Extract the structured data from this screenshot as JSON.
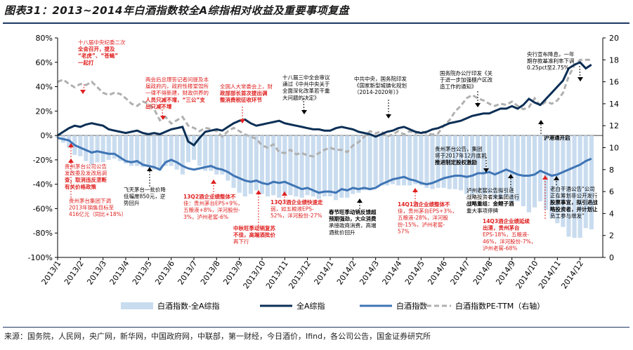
{
  "title": "图表31：2013~2014年白酒指数较全A综指相对收益及重要事项复盘",
  "source": "来源：国务院，人民网，央广网，新华网，中国政府网，中联部，第一财经，今日酒价，Ifind，各公司公告，国金证券研究所",
  "colors": {
    "bar": "#c9dcef",
    "all_a": "#0b2f55",
    "liquor": "#3f75b5",
    "pe": "#b0b0b0",
    "red": "#e02020"
  },
  "chart_data": {
    "type": "line",
    "x_tick_labels": [
      "2013/1",
      "2013/2",
      "2013/3",
      "2013/4",
      "2013/5",
      "2013/6",
      "2013/7",
      "2013/8",
      "2013/9",
      "2013/10",
      "2013/11",
      "2013/12",
      "2014/1",
      "2014/2",
      "2014/3",
      "2014/4",
      "2014/5",
      "2014/6",
      "2014/7",
      "2014/8",
      "2014/9",
      "2014/10",
      "2014/11",
      "2014/12"
    ],
    "y_left": {
      "min": -100,
      "max": 80,
      "step": 20,
      "unit": "%"
    },
    "y_right": {
      "min": 0,
      "max": 20,
      "step": 2
    },
    "legend": [
      {
        "key": "diff",
        "label": "白酒指数-全A综指",
        "style": "bar"
      },
      {
        "key": "all_a",
        "label": "全A综指",
        "style": "line"
      },
      {
        "key": "liquor",
        "label": "白酒指数",
        "style": "line"
      },
      {
        "key": "pe",
        "label": "白酒指数PE-TTM（右轴）",
        "style": "dashed"
      }
    ],
    "x_months": [
      0,
      0.25,
      0.5,
      0.75,
      1,
      1.25,
      1.5,
      1.75,
      2,
      2.25,
      2.5,
      2.75,
      3,
      3.25,
      3.5,
      3.75,
      4,
      4.25,
      4.5,
      4.75,
      5,
      5.25,
      5.5,
      5.75,
      6,
      6.25,
      6.5,
      6.75,
      7,
      7.25,
      7.5,
      7.75,
      8,
      8.25,
      8.5,
      8.75,
      9,
      9.25,
      9.5,
      9.75,
      10,
      10.25,
      10.5,
      10.75,
      11,
      11.25,
      11.5,
      11.75,
      12,
      12.25,
      12.5,
      12.75,
      13,
      13.25,
      13.5,
      13.75,
      14,
      14.25,
      14.5,
      14.75,
      15,
      15.25,
      15.5,
      15.75,
      16,
      16.25,
      16.5,
      16.75,
      17,
      17.25,
      17.5,
      17.75,
      18,
      18.25,
      18.5,
      18.75,
      19,
      19.25,
      19.5,
      19.75,
      20,
      20.25,
      20.5,
      20.75,
      21,
      21.25,
      21.5,
      21.75,
      22,
      22.25,
      22.5,
      22.75,
      23,
      23.25,
      23.5
    ],
    "series": [
      {
        "key": "all_a",
        "values": [
          0,
          3,
          6,
          8,
          7,
          9,
          10,
          9,
          8,
          5,
          4,
          3,
          2,
          3,
          4,
          2,
          1,
          2,
          1,
          3,
          5,
          6,
          7,
          -5,
          -8,
          -2,
          3,
          4,
          5,
          4,
          7,
          10,
          12,
          13,
          10,
          8,
          9,
          10,
          11,
          12,
          10,
          9,
          8,
          7,
          6,
          5,
          5,
          4,
          4,
          6,
          7,
          6,
          5,
          3,
          2,
          1,
          -1,
          1,
          3,
          4,
          6,
          7,
          5,
          3,
          2,
          3,
          5,
          6,
          8,
          10,
          11,
          12,
          14,
          16,
          17,
          18,
          18,
          20,
          22,
          22,
          24,
          22,
          25,
          30,
          27,
          25,
          30,
          35,
          40,
          45,
          55,
          58,
          60,
          55,
          58
        ]
      },
      {
        "key": "liquor",
        "values": [
          -2,
          -3,
          -4,
          -8,
          -10,
          -12,
          -14,
          -13,
          -14,
          -15,
          -15,
          -18,
          -21,
          -22,
          -21,
          -24,
          -25,
          -26,
          -28,
          -22,
          -20,
          -22,
          -25,
          -27,
          -28,
          -27,
          -26,
          -25,
          -27,
          -28,
          -30,
          -33,
          -35,
          -37,
          -38,
          -37,
          -39,
          -40,
          -38,
          -39,
          -38,
          -40,
          -42,
          -44,
          -43,
          -45,
          -47,
          -46,
          -46,
          -47,
          -44,
          -45,
          -43,
          -44,
          -43,
          -44,
          -43,
          -40,
          -38,
          -36,
          -35,
          -34,
          -36,
          -37,
          -39,
          -40,
          -39,
          -37,
          -35,
          -34,
          -33,
          -33,
          -34,
          -33,
          -31,
          -31,
          -30,
          -32,
          -30,
          -28,
          -30,
          -32,
          -33,
          -33,
          -32,
          -29,
          -31,
          -33,
          -32,
          -30,
          -28,
          -26,
          -24,
          -21,
          -19
        ]
      },
      {
        "key": "pe",
        "values": [
          16,
          16.2,
          15.8,
          15.5,
          15.8,
          15.7,
          16,
          15.5,
          15,
          14.8,
          15,
          14.9,
          14.5,
          14,
          13.8,
          14.2,
          14,
          13.5,
          12.5,
          12.8,
          12.2,
          12.5,
          12.8,
          12,
          11.8,
          11.5,
          11.8,
          11.7,
          11.5,
          11,
          11.5,
          11.8,
          11.5,
          11.2,
          11,
          10.8,
          10.2,
          10,
          10.3,
          9.6,
          9.5,
          9.8,
          9.4,
          9.5,
          9.3,
          9.2,
          9.5,
          9.8,
          10,
          9.8,
          9.8,
          9.6,
          10.2,
          10.5,
          11,
          11.5,
          11.3,
          11.5,
          11,
          11.2,
          11.5,
          11.2,
          11.5,
          11.3,
          11.5,
          11.3,
          11.2,
          11.3,
          12,
          12.5,
          13.3,
          13.8,
          14.5,
          14.8,
          14.5,
          14.3,
          14,
          13.8,
          14,
          13.9,
          14.2,
          13.8,
          13.5,
          13.7,
          14.5,
          13.8,
          14.2,
          14,
          14.3,
          15,
          16.5,
          17.5,
          18,
          18,
          18
        ]
      }
    ]
  },
  "annotations": [
    {
      "lines": [
        "十八届中央纪委二次",
        "全会召开，提及",
        "“老虎”、“苍蝇”",
        "一起打"
      ],
      "bold_lines": [
        1,
        2,
        3
      ],
      "color": "red"
    },
    {
      "lines": [
        "两会后总理答记者问提及本",
        "届政府内，政府性楼堂馆所",
        "一律不得新建，财政供养的",
        "人员只减不增，“三公”支",
        "出只减不增"
      ],
      "bold_lines": [
        3,
        4
      ],
      "color": "red"
    },
    {
      "lines": [
        "全国人大常委会上，财",
        "政部部长首次提出调",
        "整消费税征收环节"
      ],
      "bold_lines": [
        1,
        2
      ],
      "color": "red"
    },
    {
      "lines": [
        "十八届三中全会审议",
        "通过《中共中央关于",
        "全面深化改革若干重",
        "大问题的决定》"
      ],
      "bold_lines": [],
      "color": "black"
    },
    {
      "lines": [
        "中共中央，国务院印发",
        "《国家新型城镇化规划",
        "（2014-2020年）》"
      ],
      "bold_lines": [],
      "color": "black"
    },
    {
      "lines": [
        "国务院办公厅印发《关",
        "于进一步加强棚户区改",
        "造工作的通知》"
      ],
      "bold_lines": [],
      "color": "black"
    },
    {
      "lines": [
        "央行宣布降息，一年",
        "期存款基准利率下调",
        "0.25pct至2.75%"
      ],
      "bold_lines": [],
      "color": "black"
    },
    {
      "lines": [
        "沪港通开启"
      ],
      "bold_lines": [
        0
      ],
      "color": "black"
    },
    {
      "lines": [
        "贵州茅台公司公告",
        "发改委及发改局调",
        "查，取消违反垄断",
        "有关价格政策"
      ],
      "bold_lines": [
        2,
        3
      ],
      "color": "red"
    },
    {
      "lines": [
        "贵州茅台集团下调",
        "2013年销售目标至",
        "416亿元（同比+18%）"
      ],
      "bold_lines": [],
      "color": "red"
    },
    {
      "lines": [
        "飞天茅台一批价降",
        "低幅度850元，逆",
        "势回升"
      ],
      "bold_lines": [],
      "color": "black"
    },
    {
      "lines": [
        "13Q2酒企业绩整体不",
        "佳：贵州茅台EPS+9%，",
        "五粮液+8%，洋河股份-",
        "3%，泸州老窖-6%"
      ],
      "bold_lines": [
        0
      ],
      "color": "red"
    },
    {
      "lines": [
        "中秋旺季动销复苏",
        "不佳，高端酒批价",
        "再下行"
      ],
      "bold_lines": [
        0,
        1
      ],
      "color": "red"
    },
    {
      "lines": [
        "13Q3酒企业绩快速走",
        "弱，如五粮液EPS-",
        "52%，洋河股份-27%"
      ],
      "bold_lines": [
        0
      ],
      "color": "red"
    },
    {
      "lines": [
        "春节旺季动销反馈超",
        "预期强劲，大众消费",
        "承接政商消费，高端",
        "酒批价回升"
      ],
      "bold_lines": [
        0,
        1
      ],
      "color": "black"
    },
    {
      "lines": [
        "14Q1酒企业绩整体不",
        "佳，贵州茅台EPS+3%，",
        "五粮液-28%，洋河股",
        "份-15%，泸州老窖-",
        "57%"
      ],
      "bold_lines": [
        0
      ],
      "color": "red"
    },
    {
      "lines": [
        "贵州茅台公告，集团",
        "将于2017年12月底前",
        "推进制定股权激励"
      ],
      "bold_lines": [
        2
      ],
      "color": "black"
    },
    {
      "lines": [
        "泸州老窖公告拟引进",
        "战略投资者来集团进行",
        "战略重组：金鲤子酒",
        "重大事项停牌"
      ],
      "bold_lines": [
        2
      ],
      "color": "black"
    },
    {
      "lines": [
        "14Q3酒企业绩延续",
        "出清，贵州茅台",
        "EPS-18%，五粮液-",
        "46%，洋河股份-7%，",
        "泸州老窖-68%"
      ],
      "bold_lines": [
        0,
        1
      ],
      "color": "red"
    },
    {
      "lines": [
        "老白干酒公告“公司",
        "正在筹划非公开发行",
        "股票事宜，拟引进战",
        "略投资者，并计划让",
        "员工参与增发”"
      ],
      "bold_lines": [
        2,
        3
      ],
      "color": "black"
    }
  ]
}
